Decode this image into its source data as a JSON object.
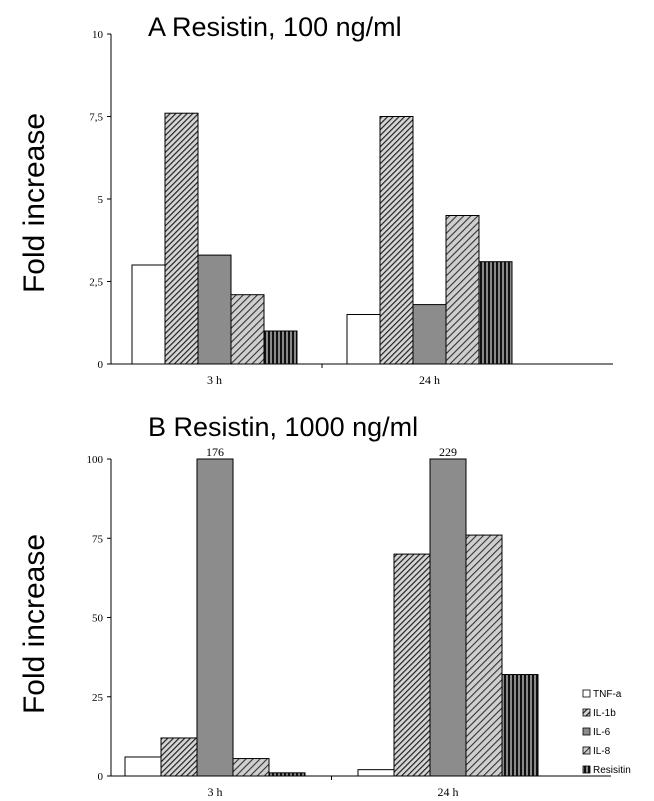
{
  "chart_data": [
    {
      "type": "bar",
      "title": "A  Resistin, 100 ng/ml",
      "ylabel": "Fold increase",
      "categories": [
        "3 h",
        "24 h"
      ],
      "ylim": [
        0,
        10
      ],
      "yticks": [
        "0",
        "2,5",
        "5",
        "7,5",
        "10"
      ],
      "series": [
        {
          "name": "TNF-a",
          "values": [
            3.0,
            1.5
          ],
          "pattern": "white"
        },
        {
          "name": "IL-1b",
          "values": [
            7.6,
            7.5
          ],
          "pattern": "diag-dense"
        },
        {
          "name": "IL-6",
          "values": [
            3.3,
            1.8
          ],
          "pattern": "gray"
        },
        {
          "name": "IL-8",
          "values": [
            2.1,
            4.5
          ],
          "pattern": "diag"
        },
        {
          "name": "Resisitin",
          "values": [
            1.0,
            3.1
          ],
          "pattern": "vertical"
        }
      ]
    },
    {
      "type": "bar",
      "title": "B  Resistin, 1000 ng/ml",
      "ylabel": "Fold increase",
      "categories": [
        "3 h",
        "24 h"
      ],
      "ylim": [
        0,
        100
      ],
      "yticks": [
        "0",
        "25",
        "50",
        "75",
        "100"
      ],
      "series": [
        {
          "name": "TNF-a",
          "values": [
            6,
            2
          ],
          "pattern": "white"
        },
        {
          "name": "IL-1b",
          "values": [
            12,
            70
          ],
          "pattern": "diag-dense"
        },
        {
          "name": "IL-6",
          "values": [
            176,
            229
          ],
          "pattern": "gray",
          "bar_labels": [
            "176",
            "229"
          ]
        },
        {
          "name": "IL-8",
          "values": [
            5.5,
            76
          ],
          "pattern": "diag"
        },
        {
          "name": "Resisitin",
          "values": [
            1,
            32
          ],
          "pattern": "vertical"
        }
      ],
      "legend": {
        "position": "right-bottom",
        "entries": [
          "TNF-a",
          "IL-1b",
          "IL-6",
          "IL-8",
          "Resisitin"
        ]
      }
    }
  ]
}
